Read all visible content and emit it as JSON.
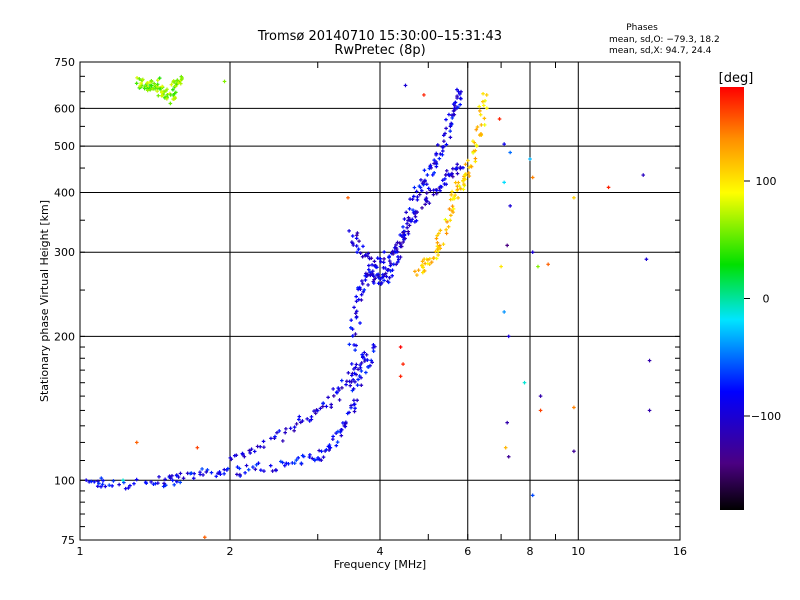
{
  "chart_data": {
    "type": "scatter",
    "title": "Tromsø 20140710 15:30:00–15:31:43",
    "subtitle": "RwPretec (8p)",
    "xlabel": "Frequency [MHz]",
    "ylabel": "Stationary phase Virtual Height [km]",
    "x_scale": "log",
    "y_scale": "log",
    "xlim": [
      1,
      16
    ],
    "ylim": [
      75,
      750
    ],
    "x_ticks": [
      1,
      2,
      4,
      6,
      8,
      10,
      16
    ],
    "x_tick_labels": [
      "1",
      "2",
      "4",
      "6",
      "8",
      "10",
      "16"
    ],
    "y_ticks": [
      75,
      100,
      200,
      300,
      400,
      500,
      600,
      750
    ],
    "y_tick_labels": [
      "75",
      "100",
      "200",
      "300",
      "400",
      "500",
      "600",
      "750"
    ],
    "grid": true,
    "stats": {
      "heading": "Phases",
      "line_o": "mean, sd,O: −79.3, 18.2",
      "line_x": "mean, sd,X:  94.7, 24.4"
    },
    "colorbar": {
      "label": "[deg]",
      "range": [
        -180,
        180
      ],
      "ticks": [
        100,
        0,
        -100
      ],
      "tick_labels": [
        "100",
        "0",
        "−100"
      ]
    },
    "traces": [
      {
        "x": [
          1.05,
          1.1,
          1.25,
          1.45,
          1.52,
          1.6,
          1.75,
          1.95,
          2.15,
          2.4,
          2.65,
          2.9,
          3.05,
          3.2,
          3.35,
          3.5,
          3.62,
          3.75,
          3.88
        ],
        "y": [
          98,
          99,
          98,
          99,
          100,
          101,
          103,
          104,
          105,
          107,
          108,
          111,
          114,
          120,
          128,
          140,
          155,
          172,
          192
        ],
        "phase": -85
      },
      {
        "x": [
          2.0,
          2.2,
          2.45,
          2.7,
          2.95,
          3.15,
          3.35,
          3.5,
          3.62,
          3.72
        ],
        "y": [
          110,
          116,
          122,
          130,
          138,
          145,
          155,
          165,
          175,
          185
        ],
        "phase": -95
      },
      {
        "x": [
          3.5,
          3.58,
          3.65,
          3.72,
          3.8,
          3.9,
          4.0,
          4.12,
          4.22,
          4.32,
          4.45,
          4.6,
          4.75,
          4.9,
          5.05,
          5.2,
          5.35,
          5.5,
          5.6,
          5.68,
          5.75
        ],
        "y": [
          185,
          215,
          245,
          262,
          270,
          268,
          263,
          266,
          278,
          300,
          330,
          365,
          395,
          420,
          445,
          470,
          505,
          550,
          590,
          620,
          650
        ],
        "phase": -90
      },
      {
        "x": [
          3.5,
          3.62,
          3.78,
          3.95,
          4.12,
          4.3,
          4.52,
          4.75,
          4.98,
          5.2,
          5.42,
          5.62,
          5.8
        ],
        "y": [
          330,
          310,
          290,
          282,
          290,
          305,
          330,
          360,
          390,
          410,
          430,
          440,
          452
        ],
        "phase": -100
      },
      {
        "x": [
          4.75,
          4.9,
          5.05,
          5.2,
          5.35,
          5.5,
          5.65,
          5.8,
          5.95,
          6.1,
          6.25,
          6.4,
          6.55
        ],
        "y": [
          272,
          280,
          290,
          305,
          330,
          370,
          395,
          415,
          432,
          460,
          510,
          570,
          640
        ],
        "phase": 110
      },
      {
        "x": [
          1.3,
          1.33,
          1.36,
          1.39,
          1.42,
          1.45,
          1.48,
          1.51,
          1.54,
          1.57,
          1.6
        ],
        "y": [
          680,
          675,
          672,
          670,
          678,
          660,
          640,
          625,
          655,
          688,
          690
        ],
        "phase": 60
      }
    ],
    "scattered_points": [
      {
        "x": 1.22,
        "y": 100,
        "phase": -10
      },
      {
        "x": 1.3,
        "y": 120,
        "phase": 150
      },
      {
        "x": 1.72,
        "y": 117,
        "phase": 160
      },
      {
        "x": 1.78,
        "y": 76,
        "phase": 150
      },
      {
        "x": 1.95,
        "y": 683,
        "phase": 60
      },
      {
        "x": 3.45,
        "y": 390,
        "phase": 150
      },
      {
        "x": 4.5,
        "y": 670,
        "phase": -100
      },
      {
        "x": 4.4,
        "y": 190,
        "phase": 180
      },
      {
        "x": 4.4,
        "y": 165,
        "phase": 170
      },
      {
        "x": 4.45,
        "y": 175,
        "phase": 170
      },
      {
        "x": 4.9,
        "y": 640,
        "phase": 170
      },
      {
        "x": 6.95,
        "y": 570,
        "phase": 170
      },
      {
        "x": 7.1,
        "y": 505,
        "phase": -90
      },
      {
        "x": 7.3,
        "y": 485,
        "phase": -50
      },
      {
        "x": 7.1,
        "y": 420,
        "phase": -20
      },
      {
        "x": 7.3,
        "y": 375,
        "phase": -100
      },
      {
        "x": 7.2,
        "y": 310,
        "phase": -140
      },
      {
        "x": 7.0,
        "y": 280,
        "phase": 100
      },
      {
        "x": 7.1,
        "y": 225,
        "phase": -40
      },
      {
        "x": 7.25,
        "y": 200,
        "phase": -100
      },
      {
        "x": 7.2,
        "y": 132,
        "phase": -120
      },
      {
        "x": 7.25,
        "y": 112,
        "phase": -130
      },
      {
        "x": 7.15,
        "y": 117,
        "phase": 120
      },
      {
        "x": 8.0,
        "y": 470,
        "phase": -30
      },
      {
        "x": 8.1,
        "y": 430,
        "phase": 140
      },
      {
        "x": 8.1,
        "y": 300,
        "phase": -100
      },
      {
        "x": 8.3,
        "y": 280,
        "phase": 60
      },
      {
        "x": 8.7,
        "y": 283,
        "phase": 150
      },
      {
        "x": 8.4,
        "y": 150,
        "phase": -120
      },
      {
        "x": 8.4,
        "y": 140,
        "phase": 160
      },
      {
        "x": 8.1,
        "y": 93,
        "phase": -60
      },
      {
        "x": 7.8,
        "y": 160,
        "phase": -10
      },
      {
        "x": 9.8,
        "y": 390,
        "phase": 110
      },
      {
        "x": 9.8,
        "y": 142,
        "phase": 140
      },
      {
        "x": 9.8,
        "y": 115,
        "phase": -130
      },
      {
        "x": 11.5,
        "y": 410,
        "phase": 170
      },
      {
        "x": 13.5,
        "y": 435,
        "phase": -110
      },
      {
        "x": 13.7,
        "y": 290,
        "phase": -100
      },
      {
        "x": 13.9,
        "y": 178,
        "phase": -120
      },
      {
        "x": 13.9,
        "y": 140,
        "phase": -120
      }
    ]
  }
}
